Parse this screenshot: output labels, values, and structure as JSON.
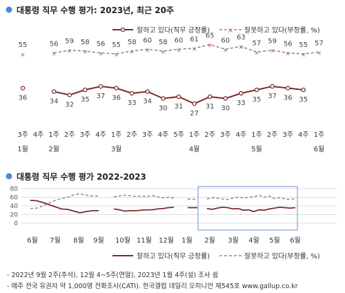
{
  "colors": {
    "approve": "#7a2a2a",
    "disapprove": "#8a8a8a",
    "bullet": "#4a8ad8",
    "box": "#6a8fd0"
  },
  "top_chart": {
    "title": "대통령 직무 수행 평가: 2023년, 최근 20주",
    "legend": {
      "approve": "잘하고 있다(직무 긍정률)",
      "disapprove": "잘못하고 있다(부정률, %)"
    }
  },
  "bottom_chart": {
    "title": "대통령 직무 수행 평가 2022-2023",
    "legend": {
      "approve": "잘하고 있다(직무 긍정률)",
      "disapprove": "잘못하고 있다(부정률, %)"
    }
  },
  "footnotes": [
    "- 2022년 9월 2주(추석), 12월 4~5주(연말), 2023년 1월 4주(설) 조사 쉼",
    "- 매주 전국 유권자 약 1,000명 전화조사(CATI). 한국갤럽 데일리 오피니언 제545호 www.gallup.co.kr"
  ],
  "chart_data": [
    {
      "type": "line",
      "title": "대통령 직무 수행 평가: 2023년, 최근 20주",
      "x_weeks": [
        "3주",
        "4주",
        "1주",
        "2주",
        "3주",
        "4주",
        "1주",
        "2주",
        "3주",
        "4주",
        "5주",
        "1주",
        "2주",
        "3주",
        "4주",
        "1주",
        "2주",
        "3주",
        "4주",
        "1주"
      ],
      "x_months": [
        {
          "label": "1월",
          "index": 0
        },
        {
          "label": "2월",
          "index": 2
        },
        {
          "label": "3월",
          "index": 6
        },
        {
          "label": "4월",
          "index": 11
        },
        {
          "label": "5월",
          "index": 15
        },
        {
          "label": "6월",
          "index": 19
        }
      ],
      "series": [
        {
          "name": "잘하고 있다(직무 긍정률)",
          "values": [
            36,
            null,
            34,
            32,
            35,
            37,
            36,
            33,
            34,
            30,
            31,
            27,
            31,
            30,
            33,
            35,
            37,
            36,
            35,
            null
          ]
        },
        {
          "name": "잘못하고 있다(부정률, %)",
          "values": [
            55,
            null,
            56,
            59,
            58,
            56,
            55,
            58,
            60,
            58,
            60,
            61,
            65,
            60,
            63,
            57,
            59,
            56,
            55,
            57
          ]
        }
      ],
      "approve_connected_from": 2
    },
    {
      "type": "line",
      "title": "대통령 직무 수행 평가 2022-2023",
      "ylim": [
        0,
        80
      ],
      "yticks": [
        0,
        20,
        40,
        60,
        80
      ],
      "x_months": [
        "6월",
        "7월",
        "8월",
        "9월",
        "10월",
        "11월",
        "12월",
        "1월",
        "2월",
        "3월",
        "4월",
        "5월",
        "6월"
      ],
      "series": [
        {
          "name": "잘하고 있다(직무 긍정률)",
          "segments": [
            [
              53,
              52,
              48,
              43,
              38,
              33,
              32,
              28,
              24,
              27,
              29,
              29
            ],
            [
              33,
              31,
              28,
              29,
              29,
              30,
              31,
              31,
              33,
              34,
              36,
              37
            ],
            [
              36,
              36
            ],
            [
              34,
              32,
              35,
              37,
              36,
              33,
              34,
              30,
              31,
              27,
              31,
              30,
              33,
              35,
              37,
              36,
              35,
              36
            ]
          ]
        },
        {
          "name": "잘못하고 있다(부정률, %)",
          "segments": [
            [
              34,
              35,
              40,
              47,
              53,
              57,
              60,
              66,
              68,
              65,
              63,
              63
            ],
            [
              61,
              63,
              65,
              64,
              62,
              63,
              62,
              64,
              61,
              59,
              60,
              58
            ],
            [
              56,
              55
            ],
            [
              56,
              59,
              58,
              56,
              55,
              58,
              60,
              58,
              60,
              61,
              65,
              60,
              63,
              57,
              59,
              56,
              55,
              57
            ]
          ]
        }
      ],
      "highlight": "최근 20주"
    }
  ]
}
